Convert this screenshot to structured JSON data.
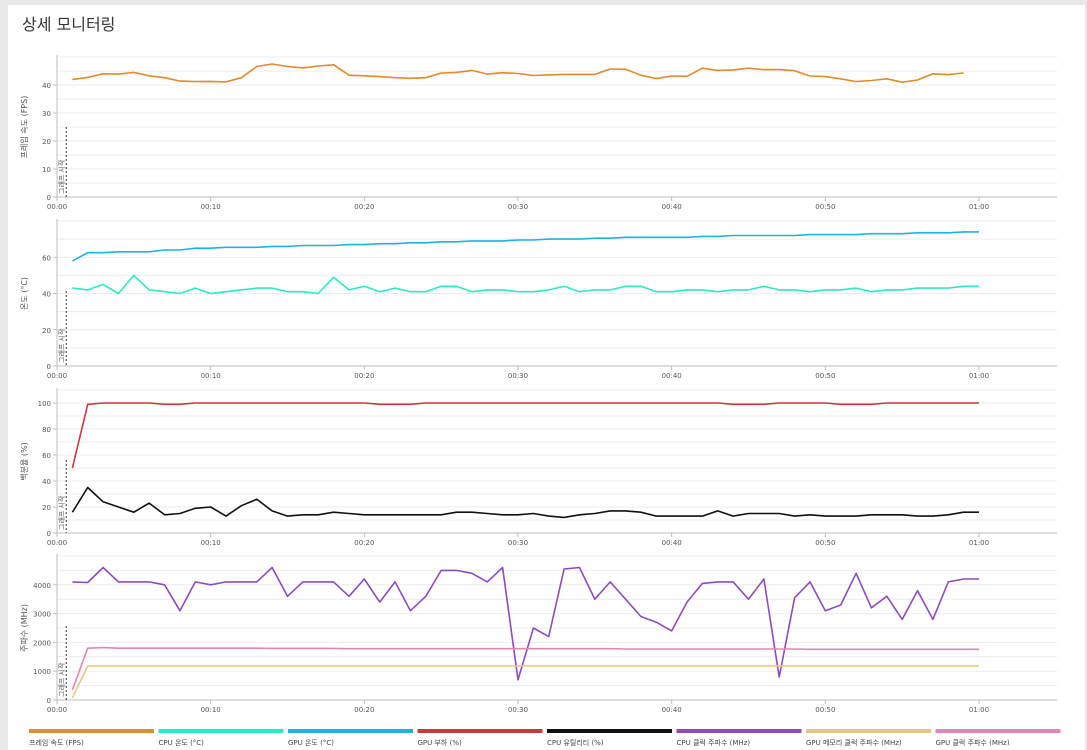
{
  "page": {
    "title": "상세 모니터링"
  },
  "legend": [
    {
      "label": "프레임 속도 (FPS)",
      "color": "#e38a2a"
    },
    {
      "label": "CPU 온도 (°C)",
      "color": "#2ee8c6"
    },
    {
      "label": "GPU 온도 (°C)",
      "color": "#1cb4e6"
    },
    {
      "label": "GPU 부하 (%)",
      "color": "#c9393a"
    },
    {
      "label": "CPU 유틸리티 (%)",
      "color": "#111111"
    },
    {
      "label": "CPU 클럭 주파수 (MHz)",
      "color": "#8e4bbf"
    },
    {
      "label": "GPU 메모리 클럭 주파수 (MHz)",
      "color": "#e5c784"
    },
    {
      "label": "GPU 클럭 주파수 (MHz)",
      "color": "#e087b6"
    }
  ],
  "chart_data": [
    {
      "type": "line",
      "ylabel": "프레임 속도 (FPS)",
      "marker_label": "그래프 시작",
      "xticks": [
        "00:00",
        "00:10",
        "00:20",
        "00:30",
        "00:40",
        "00:50",
        "01:00"
      ],
      "xlim": [
        0,
        60
      ],
      "ylim": [
        0,
        50
      ],
      "yticks": [
        0,
        10,
        20,
        30,
        40
      ],
      "grid": true,
      "series": [
        {
          "name": "프레임 속도 (FPS)",
          "color": "#e38a2a",
          "x": [
            1,
            2,
            3,
            4,
            5,
            6,
            7,
            8,
            9,
            10,
            11,
            12,
            13,
            14,
            15,
            16,
            17,
            18,
            19,
            20,
            21,
            22,
            23,
            24,
            25,
            26,
            27,
            28,
            29,
            30,
            31,
            32,
            33,
            34,
            35,
            36,
            37,
            38,
            39,
            40,
            41,
            42,
            43,
            44,
            45,
            46,
            47,
            48,
            49,
            50,
            51,
            52,
            53,
            54,
            55,
            56,
            57,
            58,
            59
          ],
          "values": [
            42,
            42.7,
            44,
            43.9,
            44.5,
            43.3,
            42.6,
            41.4,
            41.2,
            41.3,
            41.1,
            42.6,
            46.6,
            47.5,
            46.6,
            46.1,
            46.8,
            47.2,
            43.5,
            43.3,
            43,
            42.6,
            42.4,
            42.6,
            44.3,
            44.5,
            45.2,
            43.9,
            44.4,
            44.1,
            43.4,
            43.6,
            43.8,
            43.8,
            43.8,
            45.7,
            45.6,
            43.5,
            42.3,
            43.2,
            43.1,
            46,
            45.2,
            45.4,
            46,
            45.5,
            45.5,
            45.1,
            43.2,
            43,
            42.2,
            41.2,
            41.6,
            42.2,
            41,
            41.8,
            44,
            43.7,
            44.3
          ]
        }
      ]
    },
    {
      "type": "line",
      "ylabel": "온도 (°C)",
      "marker_label": "그래프 시작",
      "xticks": [
        "00:00",
        "00:10",
        "00:20",
        "00:30",
        "00:40",
        "00:50",
        "01:00"
      ],
      "xlim": [
        0,
        60
      ],
      "ylim": [
        0,
        80
      ],
      "yticks": [
        0,
        20,
        40,
        60
      ],
      "grid": true,
      "series": [
        {
          "name": "GPU 온도 (°C)",
          "color": "#1cb4e6",
          "x": [
            1,
            2,
            3,
            4,
            5,
            6,
            7,
            8,
            9,
            10,
            11,
            12,
            13,
            14,
            15,
            16,
            17,
            18,
            19,
            20,
            21,
            22,
            23,
            24,
            25,
            26,
            27,
            28,
            29,
            30,
            31,
            32,
            33,
            34,
            35,
            36,
            37,
            38,
            39,
            40,
            41,
            42,
            43,
            44,
            45,
            46,
            47,
            48,
            49,
            50,
            51,
            52,
            53,
            54,
            55,
            56,
            57,
            58,
            59,
            60
          ],
          "values": [
            58,
            62.5,
            62.5,
            63,
            63,
            63,
            64,
            64,
            65,
            65,
            65.5,
            65.5,
            65.5,
            66,
            66,
            66.5,
            66.5,
            66.5,
            67,
            67,
            67.5,
            67.5,
            68,
            68,
            68.5,
            68.5,
            69,
            69,
            69,
            69.5,
            69.5,
            70,
            70,
            70,
            70.5,
            70.5,
            71,
            71,
            71,
            71,
            71,
            71.5,
            71.5,
            72,
            72,
            72,
            72,
            72,
            72.5,
            72.5,
            72.5,
            72.5,
            73,
            73,
            73,
            73.5,
            73.5,
            73.5,
            74,
            74
          ]
        },
        {
          "name": "CPU 온도 (°C)",
          "color": "#2ee8c6",
          "x": [
            1,
            2,
            3,
            4,
            5,
            6,
            7,
            8,
            9,
            10,
            11,
            12,
            13,
            14,
            15,
            16,
            17,
            18,
            19,
            20,
            21,
            22,
            23,
            24,
            25,
            26,
            27,
            28,
            29,
            30,
            31,
            32,
            33,
            34,
            35,
            36,
            37,
            38,
            39,
            40,
            41,
            42,
            43,
            44,
            45,
            46,
            47,
            48,
            49,
            50,
            51,
            52,
            53,
            54,
            55,
            56,
            57,
            58,
            59,
            60
          ],
          "values": [
            43,
            42,
            45,
            40,
            50,
            42,
            41,
            40,
            43,
            40,
            41,
            42,
            43,
            43,
            41,
            41,
            40,
            49,
            42,
            44,
            41,
            43,
            41,
            41,
            44,
            44,
            41,
            42,
            42,
            41,
            41,
            42,
            44,
            41,
            42,
            42,
            44,
            44,
            41,
            41,
            42,
            42,
            41,
            42,
            42,
            44,
            42,
            42,
            41,
            42,
            42,
            43,
            41,
            42,
            42,
            43,
            43,
            43,
            44,
            44
          ]
        }
      ]
    },
    {
      "type": "line",
      "ylabel": "백분율 (%)",
      "marker_label": "그래프 시작",
      "xticks": [
        "00:00",
        "00:10",
        "00:20",
        "00:30",
        "00:40",
        "00:50",
        "01:00"
      ],
      "xlim": [
        0,
        60
      ],
      "ylim": [
        0,
        110
      ],
      "yticks": [
        0,
        20,
        40,
        60,
        80,
        100
      ],
      "grid": true,
      "series": [
        {
          "name": "GPU 부하 (%)",
          "color": "#c9393a",
          "x": [
            1,
            2,
            3,
            4,
            5,
            6,
            7,
            8,
            9,
            10,
            11,
            12,
            13,
            14,
            15,
            16,
            17,
            18,
            19,
            20,
            21,
            22,
            23,
            24,
            25,
            26,
            27,
            28,
            29,
            30,
            31,
            32,
            33,
            34,
            35,
            36,
            37,
            38,
            39,
            40,
            41,
            42,
            43,
            44,
            45,
            46,
            47,
            48,
            49,
            50,
            51,
            52,
            53,
            54,
            55,
            56,
            57,
            58,
            59,
            60
          ],
          "values": [
            50,
            99,
            100,
            100,
            100,
            100,
            99,
            99,
            100,
            100,
            100,
            100,
            100,
            100,
            100,
            100,
            100,
            100,
            100,
            100,
            99,
            99,
            99,
            100,
            100,
            100,
            100,
            100,
            100,
            100,
            100,
            100,
            100,
            100,
            100,
            100,
            100,
            100,
            100,
            100,
            100,
            100,
            100,
            99,
            99,
            99,
            100,
            100,
            100,
            100,
            99,
            99,
            99,
            100,
            100,
            100,
            100,
            100,
            100,
            100
          ]
        },
        {
          "name": "CPU 유틸리티 (%)",
          "color": "#111111",
          "x": [
            1,
            2,
            3,
            4,
            5,
            6,
            7,
            8,
            9,
            10,
            11,
            12,
            13,
            14,
            15,
            16,
            17,
            18,
            19,
            20,
            21,
            22,
            23,
            24,
            25,
            26,
            27,
            28,
            29,
            30,
            31,
            32,
            33,
            34,
            35,
            36,
            37,
            38,
            39,
            40,
            41,
            42,
            43,
            44,
            45,
            46,
            47,
            48,
            49,
            50,
            51,
            52,
            53,
            54,
            55,
            56,
            57,
            58,
            59,
            60
          ],
          "values": [
            16,
            35,
            24,
            20,
            16,
            23,
            14,
            15,
            19,
            20,
            13,
            21,
            26,
            17,
            13,
            14,
            14,
            16,
            15,
            14,
            14,
            14,
            14,
            14,
            14,
            16,
            16,
            15,
            14,
            14,
            15,
            13,
            12,
            14,
            15,
            17,
            17,
            16,
            13,
            13,
            13,
            13,
            17,
            13,
            15,
            15,
            15,
            13,
            14,
            13,
            13,
            13,
            14,
            14,
            14,
            13,
            13,
            14,
            16,
            16
          ]
        }
      ]
    },
    {
      "type": "line",
      "ylabel": "주파수 (MHz)",
      "marker_label": "그래프 시작",
      "xticks": [
        "00:00",
        "00:10",
        "00:20",
        "00:30",
        "00:40",
        "00:50",
        "01:00"
      ],
      "xlim": [
        0,
        60
      ],
      "ylim": [
        0,
        5000
      ],
      "yticks": [
        0,
        1000,
        2000,
        3000,
        4000
      ],
      "grid": true,
      "series": [
        {
          "name": "CPU 클럭 주파수 (MHz)",
          "color": "#8e4bbf",
          "x": [
            1,
            2,
            3,
            4,
            5,
            6,
            7,
            8,
            9,
            10,
            11,
            12,
            13,
            14,
            15,
            16,
            17,
            18,
            19,
            20,
            21,
            22,
            23,
            24,
            25,
            26,
            27,
            28,
            29,
            30,
            31,
            32,
            33,
            34,
            35,
            36,
            37,
            38,
            39,
            40,
            41,
            42,
            43,
            44,
            45,
            46,
            47,
            48,
            49,
            50,
            51,
            52,
            53,
            54,
            55,
            56,
            57,
            58,
            59,
            60
          ],
          "values": [
            4100,
            4080,
            4600,
            4100,
            4100,
            4100,
            4000,
            3100,
            4100,
            4000,
            4100,
            4100,
            4100,
            4600,
            3600,
            4100,
            4100,
            4100,
            3600,
            4200,
            3400,
            4100,
            3100,
            3600,
            4500,
            4500,
            4400,
            4100,
            4600,
            700,
            2500,
            2200,
            4550,
            4600,
            3500,
            4100,
            3500,
            2900,
            2700,
            2400,
            3400,
            4050,
            4100,
            4100,
            3500,
            4200,
            800,
            3550,
            4100,
            3100,
            3300,
            4400,
            3200,
            3600,
            2800,
            3800,
            2800,
            4100,
            4200,
            4200
          ]
        },
        {
          "name": "GPU 클럭 주파수 (MHz)",
          "color": "#e087b6",
          "x": [
            1,
            2,
            3,
            4,
            5,
            6,
            7,
            8,
            9,
            10,
            11,
            12,
            13,
            14,
            15,
            16,
            17,
            18,
            19,
            20,
            21,
            22,
            23,
            24,
            25,
            26,
            27,
            28,
            29,
            30,
            31,
            32,
            33,
            34,
            35,
            36,
            37,
            38,
            39,
            40,
            41,
            42,
            43,
            44,
            45,
            46,
            47,
            48,
            49,
            50,
            51,
            52,
            53,
            54,
            55,
            56,
            57,
            58,
            59,
            60
          ],
          "values": [
            350,
            1800,
            1820,
            1800,
            1800,
            1800,
            1800,
            1800,
            1800,
            1800,
            1800,
            1800,
            1800,
            1790,
            1790,
            1790,
            1790,
            1790,
            1780,
            1780,
            1780,
            1780,
            1780,
            1780,
            1780,
            1780,
            1780,
            1780,
            1780,
            1780,
            1780,
            1780,
            1780,
            1780,
            1780,
            1780,
            1770,
            1770,
            1770,
            1770,
            1770,
            1770,
            1770,
            1770,
            1770,
            1770,
            1770,
            1770,
            1760,
            1760,
            1760,
            1760,
            1760,
            1760,
            1760,
            1760,
            1760,
            1760,
            1760,
            1760
          ]
        },
        {
          "name": "GPU 메모리 클럭 주파수 (MHz)",
          "color": "#e5c784",
          "x": [
            1,
            2,
            3,
            4,
            5,
            6,
            7,
            8,
            9,
            10,
            11,
            12,
            13,
            14,
            15,
            16,
            17,
            18,
            19,
            20,
            21,
            22,
            23,
            24,
            25,
            26,
            27,
            28,
            29,
            30,
            31,
            32,
            33,
            34,
            35,
            36,
            37,
            38,
            39,
            40,
            41,
            42,
            43,
            44,
            45,
            46,
            47,
            48,
            49,
            50,
            51,
            52,
            53,
            54,
            55,
            56,
            57,
            58,
            59,
            60
          ],
          "values": [
            80,
            1180,
            1180,
            1180,
            1180,
            1180,
            1180,
            1180,
            1180,
            1180,
            1180,
            1180,
            1180,
            1180,
            1180,
            1180,
            1180,
            1180,
            1180,
            1180,
            1180,
            1180,
            1180,
            1180,
            1180,
            1180,
            1180,
            1180,
            1180,
            1180,
            1180,
            1180,
            1180,
            1180,
            1180,
            1180,
            1180,
            1180,
            1180,
            1180,
            1180,
            1180,
            1180,
            1180,
            1180,
            1180,
            1180,
            1180,
            1180,
            1180,
            1180,
            1180,
            1180,
            1180,
            1180,
            1180,
            1180,
            1180,
            1180,
            1180
          ]
        }
      ]
    }
  ]
}
